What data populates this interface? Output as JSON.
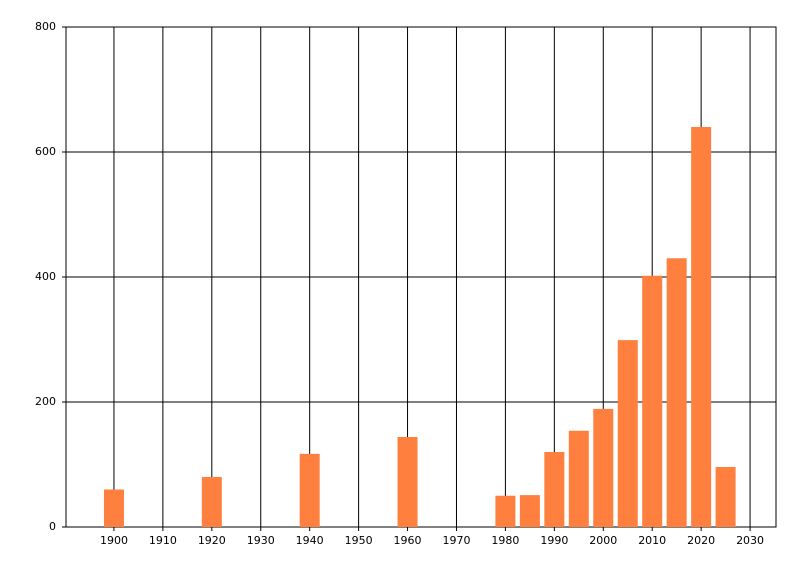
{
  "chart_data": {
    "type": "bar",
    "x": [
      1900,
      1920,
      1940,
      1960,
      1980,
      1985,
      1990,
      1995,
      2000,
      2005,
      2010,
      2015,
      2020,
      2025
    ],
    "values": [
      60,
      80,
      117,
      144,
      50,
      51,
      120,
      154,
      189,
      299,
      402,
      430,
      640,
      96
    ],
    "color": "#ff7f3f",
    "xlim": [
      1890.2,
      2035.3
    ],
    "ylim": [
      0,
      800
    ],
    "xticks": [
      1900,
      1910,
      1920,
      1930,
      1940,
      1950,
      1960,
      1970,
      1980,
      1990,
      2000,
      2010,
      2020,
      2030
    ],
    "yticks": [
      0,
      200,
      400,
      600,
      800
    ],
    "grid": true
  }
}
